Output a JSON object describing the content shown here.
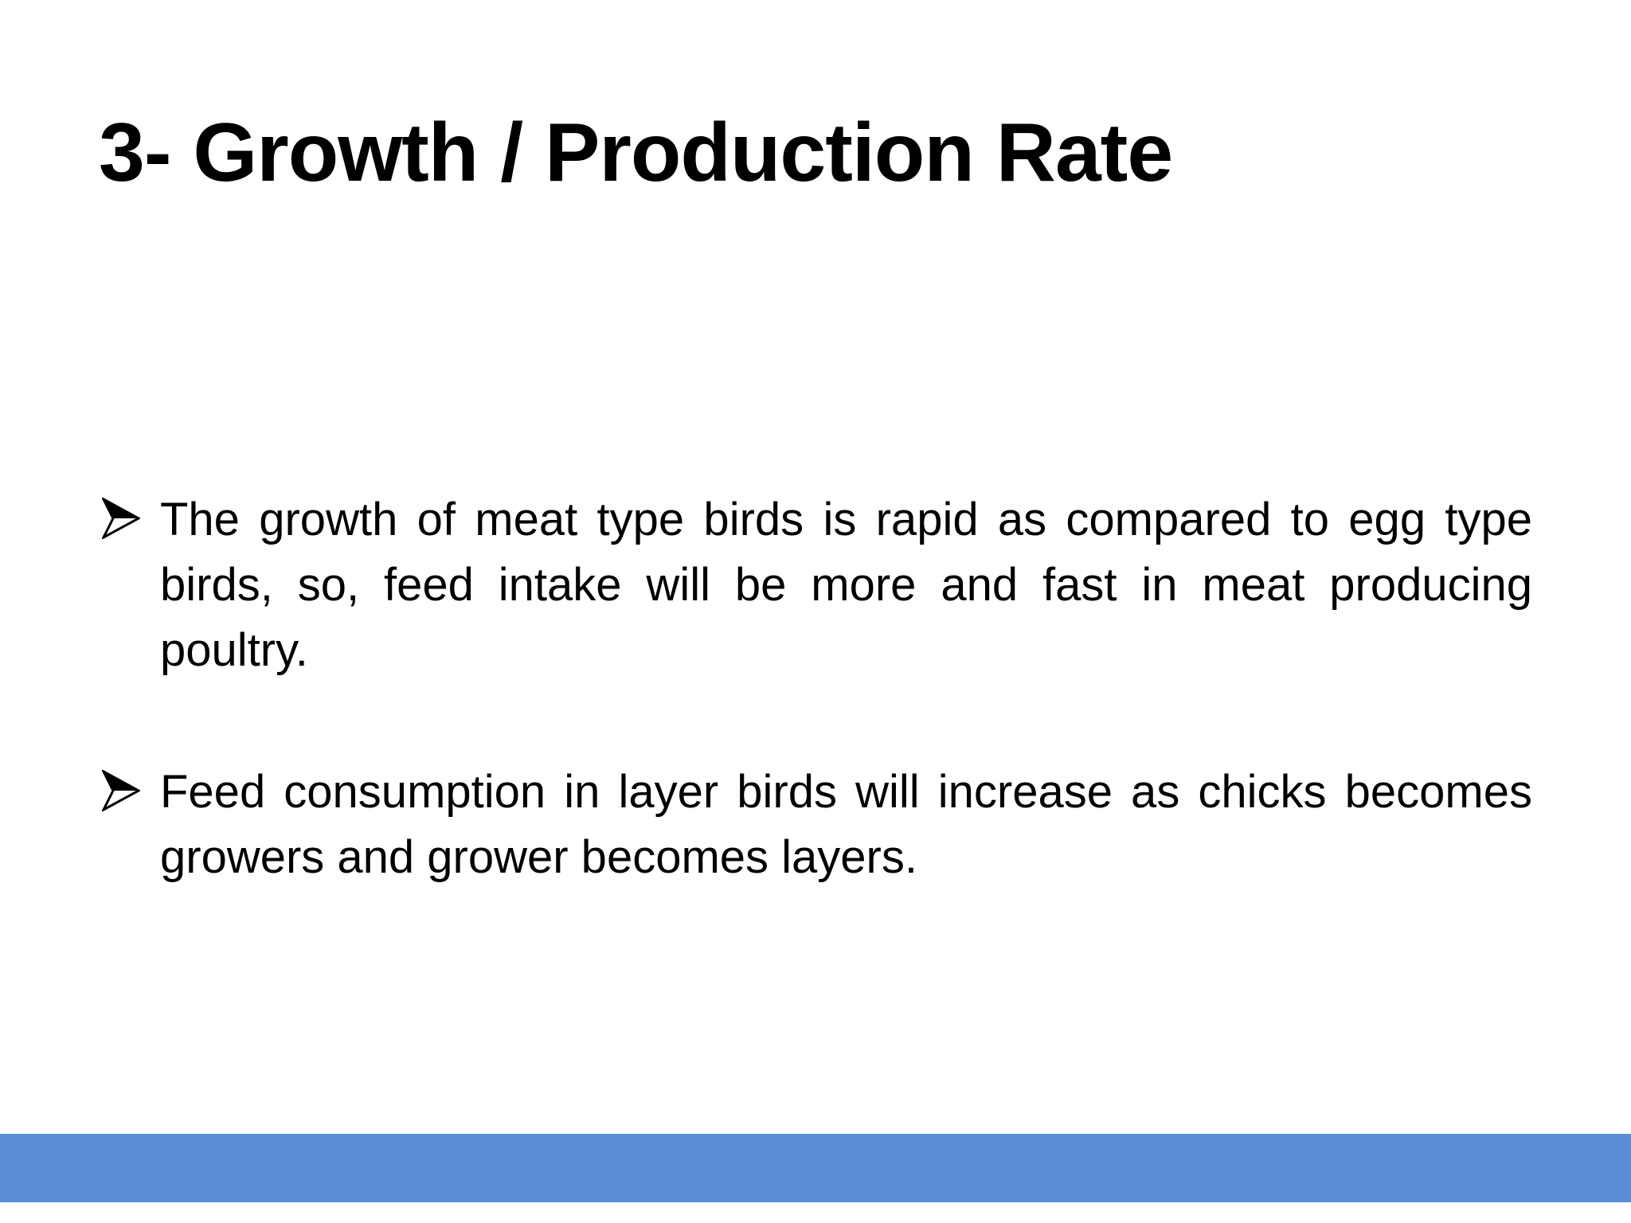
{
  "slide": {
    "title": "3- Growth / Production Rate",
    "bullet_icon": "arrow-bullet-icon",
    "bullets": [
      {
        "text": "The growth of meat type birds is rapid as compared to egg type birds, so, feed intake will be more and fast in meat producing poultry."
      },
      {
        "text": "Feed consumption in layer birds will increase as chicks becomes growers and grower becomes layers."
      }
    ],
    "colors": {
      "background": "#ffffff",
      "text": "#000000",
      "footer_bar": "#5a8fd6"
    }
  }
}
